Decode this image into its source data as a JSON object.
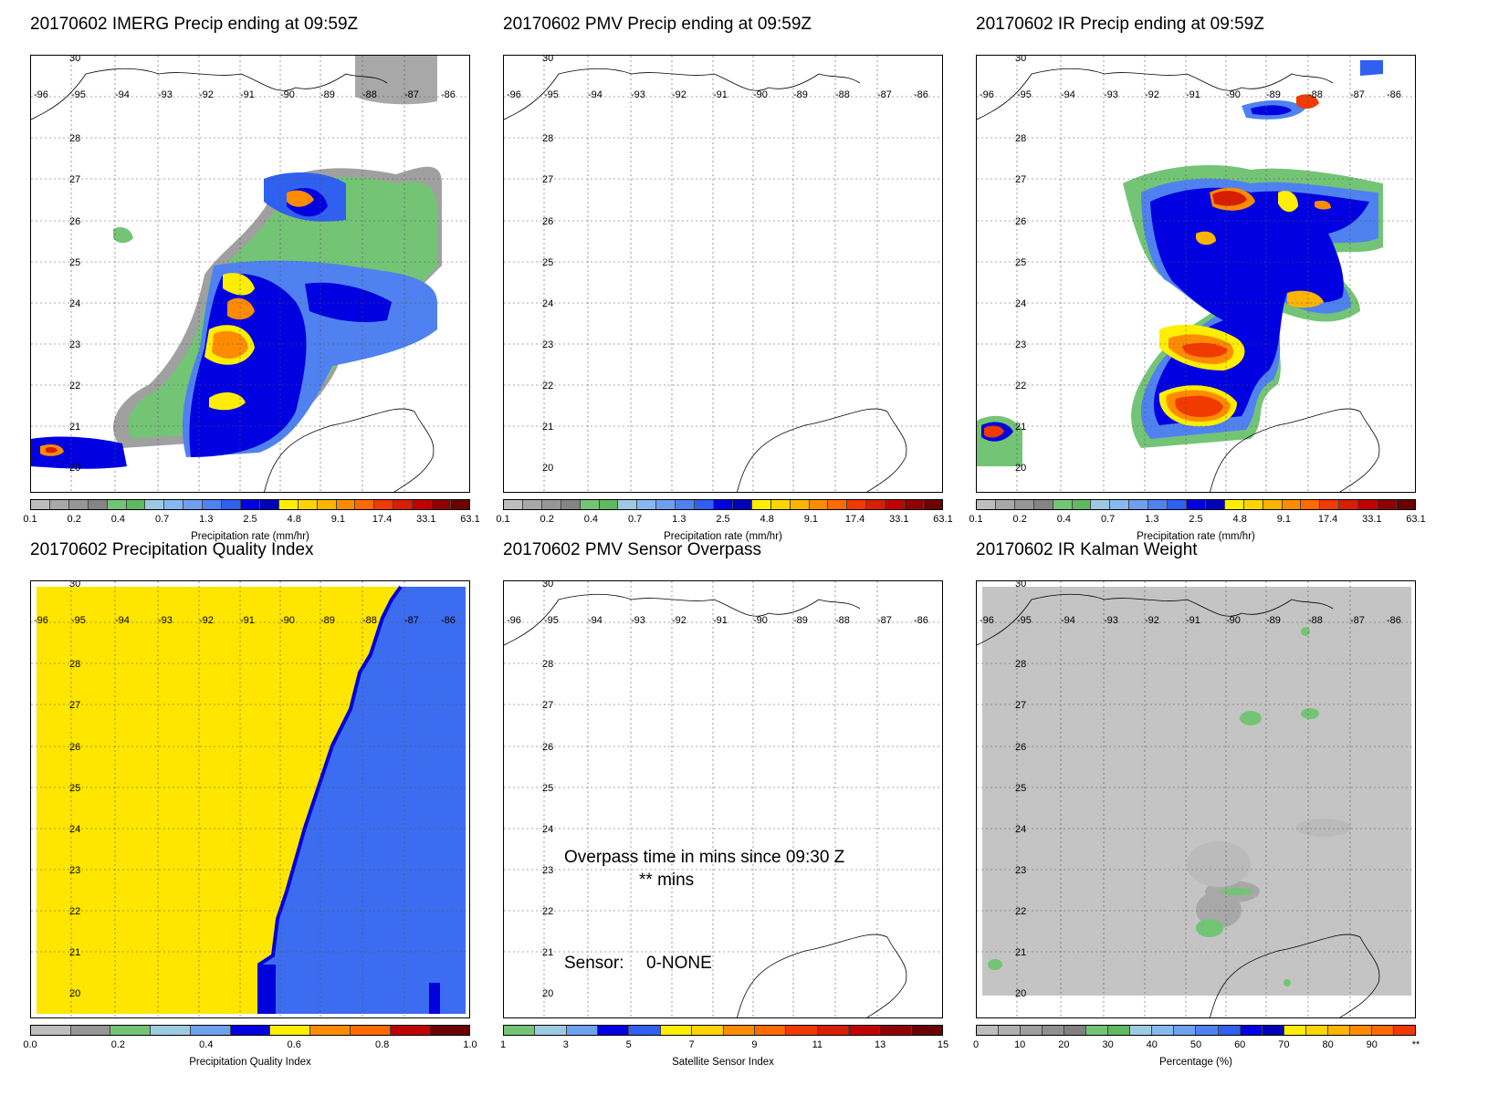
{
  "panels": [
    {
      "title": "20170602 IMERG Precip ending at 09:59Z",
      "colorbar": {
        "label": "Precipitation rate (mm/hr)",
        "colors": [
          "#bdbdbd",
          "#a8a8a8",
          "#969696",
          "#848484",
          "#74c476",
          "#60b860",
          "#9ecae1",
          "#88b8f0",
          "#6fa0f0",
          "#4f82f0",
          "#2f60f0",
          "#0000e0",
          "#0000b8",
          "#ffee00",
          "#ffd400",
          "#ffb400",
          "#ff8c00",
          "#ff6a00",
          "#f03a00",
          "#d81e00",
          "#c00000",
          "#900000",
          "#6a0000"
        ],
        "ticks": [
          "0.1",
          "0.2",
          "0.4",
          "0.7",
          "1.3",
          "2.5",
          "4.8",
          "9.1",
          "17.4",
          "33.1",
          "63.1"
        ]
      }
    },
    {
      "title": "20170602 PMV Precip ending at 09:59Z",
      "colorbar": {
        "label": "Precipitation rate (mm/hr)",
        "colors": [
          "#bdbdbd",
          "#a8a8a8",
          "#969696",
          "#848484",
          "#74c476",
          "#60b860",
          "#9ecae1",
          "#88b8f0",
          "#6fa0f0",
          "#4f82f0",
          "#2f60f0",
          "#0000e0",
          "#0000b8",
          "#ffee00",
          "#ffd400",
          "#ffb400",
          "#ff8c00",
          "#ff6a00",
          "#f03a00",
          "#d81e00",
          "#c00000",
          "#900000",
          "#6a0000"
        ],
        "ticks": [
          "0.1",
          "0.2",
          "0.4",
          "0.7",
          "1.3",
          "2.5",
          "4.8",
          "9.1",
          "17.4",
          "33.1",
          "63.1"
        ]
      }
    },
    {
      "title": "20170602 IR Precip ending at 09:59Z",
      "colorbar": {
        "label": "Precipitation rate (mm/hr)",
        "colors": [
          "#bdbdbd",
          "#a8a8a8",
          "#969696",
          "#848484",
          "#74c476",
          "#60b860",
          "#9ecae1",
          "#88b8f0",
          "#6fa0f0",
          "#4f82f0",
          "#2f60f0",
          "#0000e0",
          "#0000b8",
          "#ffee00",
          "#ffd400",
          "#ffb400",
          "#ff8c00",
          "#ff6a00",
          "#f03a00",
          "#d81e00",
          "#c00000",
          "#900000",
          "#6a0000"
        ],
        "ticks": [
          "0.1",
          "0.2",
          "0.4",
          "0.7",
          "1.3",
          "2.5",
          "4.8",
          "9.1",
          "17.4",
          "33.1",
          "63.1"
        ]
      }
    },
    {
      "title": "20170602 Precipitation Quality Index",
      "colorbar": {
        "label": "Precipitation Quality Index",
        "colors": [
          "#bdbdbd",
          "#969696",
          "#74c476",
          "#9ecae1",
          "#6fa0f0",
          "#0000e0",
          "#ffee00",
          "#ff8c00",
          "#ff6a00",
          "#c00000",
          "#6a0000"
        ],
        "ticks": [
          "0.0",
          "0.2",
          "0.4",
          "0.6",
          "0.8",
          "1.0"
        ]
      },
      "fills": {
        "left": "#ffe600",
        "right": "#3c6cf0",
        "edge": "#0000dd"
      }
    },
    {
      "title": "20170602 PMV Sensor Overpass",
      "colorbar": {
        "label": "Satellite Sensor Index",
        "colors": [
          "#74c476",
          "#9ecae1",
          "#6fa0f0",
          "#0000e0",
          "#2f60f0",
          "#ffee00",
          "#ffd400",
          "#ff8c00",
          "#ff6a00",
          "#f03a00",
          "#d81e00",
          "#c00000",
          "#900000",
          "#6a0000"
        ],
        "ticks": [
          "1",
          "3",
          "5",
          "7",
          "9",
          "11",
          "13",
          "15"
        ]
      },
      "overpass_text": "Overpass time in mins since 09:30 Z",
      "mins_text": "** mins",
      "sensor_label": "Sensor:",
      "sensor_value": "0-NONE"
    },
    {
      "title": "20170602 IR Kalman Weight",
      "colorbar": {
        "label": "Percentage (%)",
        "colors": [
          "#bdbdbd",
          "#b0b0b0",
          "#a0a0a0",
          "#909090",
          "#808080",
          "#74c476",
          "#60b860",
          "#9ecae1",
          "#88b8f0",
          "#6fa0f0",
          "#4f82f0",
          "#2f60f0",
          "#0000e0",
          "#0000b8",
          "#ffee00",
          "#ffd400",
          "#ffb400",
          "#ff8c00",
          "#ff6a00",
          "#f03a00"
        ],
        "ticks": [
          "0",
          "10",
          "20",
          "30",
          "40",
          "50",
          "60",
          "70",
          "80",
          "90",
          "**"
        ]
      },
      "background_fill": "#c4c4c4"
    }
  ],
  "map": {
    "lon_labels": [
      "-96",
      "-95",
      "-94",
      "-93",
      "-92",
      "-91",
      "-90",
      "-89",
      "-88",
      "-87",
      "-86"
    ],
    "lat_labels": [
      "30",
      "28",
      "27",
      "26",
      "25",
      "24",
      "23",
      "22",
      "21",
      "20"
    ]
  }
}
